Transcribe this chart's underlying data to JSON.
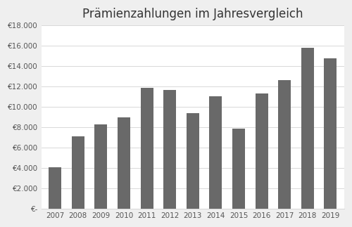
{
  "title": "Prämienzahlungen im Jahresvergleich",
  "years": [
    2007,
    2008,
    2009,
    2010,
    2011,
    2012,
    2013,
    2014,
    2015,
    2016,
    2017,
    2018,
    2019
  ],
  "values": [
    4050,
    7100,
    8300,
    9000,
    11900,
    11700,
    9400,
    11050,
    7850,
    11300,
    12600,
    15800,
    14800
  ],
  "bar_color": "#696969",
  "background_color": "#efefef",
  "plot_bg_color": "#ffffff",
  "ylim": [
    0,
    18000
  ],
  "ytick_step": 2000,
  "title_fontsize": 12,
  "tick_fontsize": 7.5,
  "grid_color": "#d8d8d8",
  "bar_width": 0.55
}
